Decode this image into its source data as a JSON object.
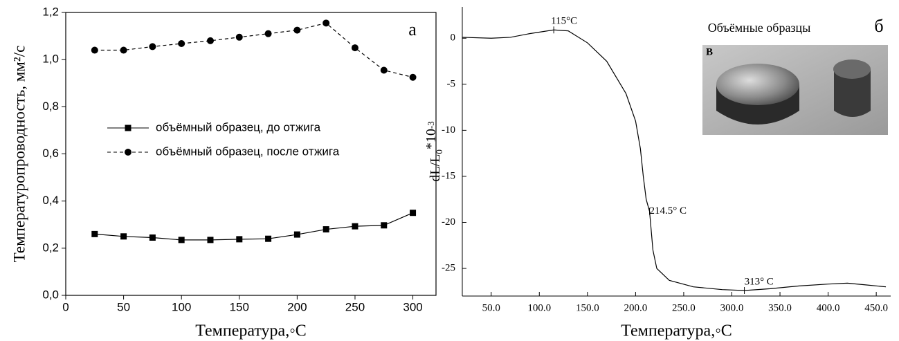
{
  "chart_data": [
    {
      "type": "line",
      "xlabel": "Температура,◦C",
      "ylabel": "Температуропроводность, мм²/с",
      "annotation": "а",
      "xlim": [
        0,
        320
      ],
      "ylim": [
        0,
        1.2
      ],
      "xticks": [
        0,
        50,
        100,
        150,
        200,
        250,
        300
      ],
      "yticks": [
        {
          "value": 0,
          "label": "0,0"
        },
        {
          "value": 0.2,
          "label": "0,2"
        },
        {
          "value": 0.4,
          "label": "0,4"
        },
        {
          "value": 0.6,
          "label": "0,6"
        },
        {
          "value": 0.8,
          "label": "0,8"
        },
        {
          "value": 1.0,
          "label": "1,0"
        },
        {
          "value": 1.2,
          "label": "1,2"
        }
      ],
      "x": [
        25,
        50,
        75,
        100,
        125,
        150,
        175,
        200,
        225,
        250,
        275,
        300
      ],
      "series": [
        {
          "name": "объёмный образец, до отжига",
          "color": "#000000",
          "marker": "square",
          "dash": "solid",
          "values": [
            0.26,
            0.25,
            0.245,
            0.235,
            0.235,
            0.238,
            0.24,
            0.258,
            0.28,
            0.293,
            0.297,
            0.35
          ]
        },
        {
          "name": "объёмный образец, после отжига",
          "color": "#000000",
          "marker": "circle",
          "dash": "dashed",
          "values": [
            1.04,
            1.04,
            1.055,
            1.068,
            1.08,
            1.095,
            1.11,
            1.125,
            1.155,
            1.05,
            0.955,
            0.925
          ]
        }
      ]
    },
    {
      "type": "line",
      "xlabel": "Температура,◦C",
      "ylabel_parts": [
        "dL/L",
        "0",
        "*10",
        "-3"
      ],
      "annotation": "б",
      "inset_title": "Объёмные образцы",
      "inset_label": "В",
      "xlim": [
        20,
        465
      ],
      "ylim": [
        -28,
        3.4
      ],
      "xticks": [
        {
          "value": 50,
          "label": "50.0"
        },
        {
          "value": 100,
          "label": "100.0"
        },
        {
          "value": 150,
          "label": "150.0"
        },
        {
          "value": 200,
          "label": "200.0"
        },
        {
          "value": 250,
          "label": "250.0"
        },
        {
          "value": 300,
          "label": "300.0"
        },
        {
          "value": 350,
          "label": "350.0"
        },
        {
          "value": 400,
          "label": "400.0"
        },
        {
          "value": 450,
          "label": "450.0"
        }
      ],
      "yticks": [
        0,
        -5,
        -10,
        -15,
        -20,
        -25
      ],
      "x": [
        20,
        50,
        70,
        90,
        115,
        130,
        150,
        170,
        190,
        200,
        205,
        208,
        211,
        214.5,
        218,
        222,
        235,
        260,
        290,
        313,
        340,
        370,
        400,
        420,
        440,
        460
      ],
      "color": "#000000",
      "values": [
        0.1,
        0,
        0.1,
        0.5,
        0.9,
        0.8,
        -0.5,
        -2.5,
        -6,
        -9,
        -12,
        -15,
        -17.5,
        -18.8,
        -23,
        -25,
        -26.3,
        -27,
        -27.3,
        -27.4,
        -27.2,
        -26.9,
        -26.7,
        -26.6,
        -26.8,
        -27.0
      ],
      "annotations": [
        {
          "text": "115°C",
          "x": 115,
          "y": 0.9
        },
        {
          "text": "214.5° C",
          "x": 214.5,
          "y": -18.8
        },
        {
          "text": "313° C",
          "x": 313,
          "y": -27.4
        }
      ]
    }
  ]
}
